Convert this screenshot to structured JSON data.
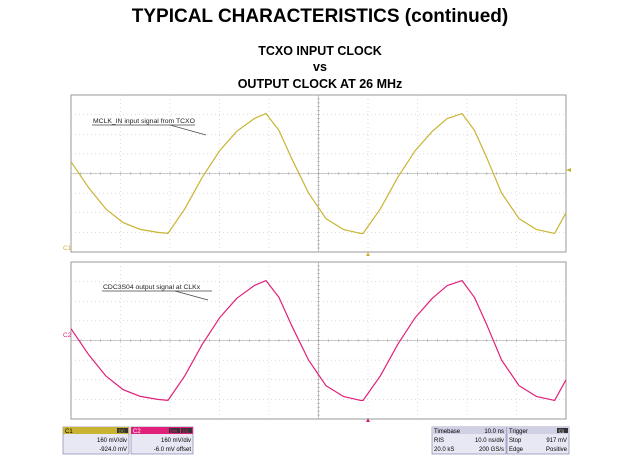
{
  "header": {
    "title": "TYPICAL CHARACTERISTICS (continued)",
    "subtitle_line1": "TCXO INPUT CLOCK",
    "subtitle_line2": "vs",
    "subtitle_line3": "OUTPUT CLOCK AT 26 MHz"
  },
  "channels": {
    "c1": {
      "label": "C1",
      "annotation": "MCLK_IN input signal from TCXO",
      "color": "#c8b432",
      "coupling": "DC",
      "vdiv": "160 mV/div",
      "offset": "-924.0 mV"
    },
    "c2": {
      "label": "C2",
      "annotation": "CDC3S04 output signal at CLKx",
      "color": "#e0207a",
      "coupling": "DC",
      "bw": "BW",
      "vdiv": "160 mV/div",
      "offset": "-6.0 mV offset"
    }
  },
  "timebase": {
    "label": "Timebase",
    "value": "10.0 ns",
    "mode": "RIS",
    "div": "10.0 ns/div",
    "samples": "20.0 kS",
    "rate": "200 GS/s"
  },
  "trigger": {
    "label": "Trigger",
    "channel": "C1",
    "mode": "Stop",
    "level": "917 mV",
    "type": "Edge",
    "slope": "Positive"
  },
  "chart_data": [
    {
      "type": "line",
      "title": "TCXO INPUT CLOCK vs OUTPUT CLOCK AT 26 MHz",
      "xlabel": "",
      "ylabel": "",
      "x_unit": "div",
      "y_unit": "div",
      "xlim": [
        0,
        10
      ],
      "ylim": [
        -4,
        4
      ],
      "grid": true,
      "series": [
        {
          "name": "MCLK_IN input signal from TCXO",
          "x": [
            0,
            0.35,
            0.7,
            1.05,
            1.4,
            1.75,
            1.96,
            2.3,
            2.65,
            3.0,
            3.35,
            3.7,
            3.94,
            4.2,
            4.45,
            4.8,
            5.15,
            5.5,
            5.85,
            5.9,
            6.25,
            6.6,
            6.95,
            7.3,
            7.6,
            7.9,
            8.15,
            8.4,
            8.7,
            9.05,
            9.4,
            9.77,
            10
          ],
          "y": [
            0.6,
            -0.7,
            -1.8,
            -2.5,
            -2.85,
            -3.0,
            -3.05,
            -1.8,
            -0.2,
            1.15,
            2.15,
            2.8,
            3.05,
            2.2,
            0.8,
            -1.0,
            -2.3,
            -2.85,
            -3.05,
            -3.05,
            -1.8,
            -0.2,
            1.15,
            2.15,
            2.8,
            3.05,
            2.2,
            0.8,
            -1.0,
            -2.3,
            -2.85,
            -3.05,
            -2.0
          ]
        },
        {
          "name": "CDC3S04 output signal at CLKx",
          "x": [
            0,
            0.35,
            0.7,
            1.05,
            1.4,
            1.75,
            1.96,
            2.3,
            2.65,
            3.0,
            3.35,
            3.7,
            3.94,
            4.2,
            4.45,
            4.8,
            5.15,
            5.5,
            5.85,
            5.9,
            6.25,
            6.6,
            6.95,
            7.3,
            7.6,
            7.9,
            8.15,
            8.4,
            8.7,
            9.05,
            9.4,
            9.77,
            10
          ],
          "y": [
            0.6,
            -0.7,
            -1.8,
            -2.5,
            -2.85,
            -3.0,
            -3.05,
            -1.8,
            -0.2,
            1.15,
            2.15,
            2.8,
            3.05,
            2.2,
            0.8,
            -1.0,
            -2.3,
            -2.85,
            -3.05,
            -3.05,
            -1.8,
            -0.2,
            1.15,
            2.15,
            2.8,
            3.05,
            2.2,
            0.8,
            -1.0,
            -2.3,
            -2.85,
            -3.05,
            -2.0
          ]
        }
      ]
    }
  ]
}
